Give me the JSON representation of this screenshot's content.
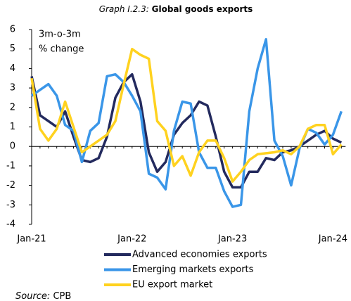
{
  "chart_data": {
    "type": "line",
    "title_prefix": "Graph I.2.3:",
    "title": "Global goods exports",
    "y_label": [
      "3m-o-3m",
      "% change"
    ],
    "source_prefix": "Source:",
    "source": "CPB",
    "categories": [
      "Jan-21",
      null,
      null,
      null,
      null,
      null,
      null,
      null,
      null,
      null,
      null,
      null,
      "Jan-22",
      null,
      null,
      null,
      null,
      null,
      null,
      null,
      null,
      null,
      null,
      null,
      "Jan-23",
      null,
      null,
      null,
      null,
      null,
      null,
      null,
      null,
      null,
      null,
      null,
      "Jan-24",
      null
    ],
    "series": [
      {
        "name": "Advanced economies exports",
        "color": "#232a5e",
        "values": [
          3.6,
          1.6,
          1.3,
          1.0,
          1.8,
          0.5,
          -0.7,
          -0.8,
          -0.6,
          0.5,
          2.5,
          3.3,
          3.7,
          2.3,
          -0.3,
          -1.3,
          -0.8,
          0.6,
          1.2,
          1.6,
          2.3,
          2.1,
          0.5,
          -1.3,
          -2.1,
          -2.1,
          -1.3,
          -1.3,
          -0.6,
          -0.7,
          -0.3,
          -0.2,
          0.0,
          0.3,
          0.6,
          0.8,
          0.4,
          0.2
        ]
      },
      {
        "name": "Emerging markets exports",
        "color": "#3a96e8",
        "values": [
          2.6,
          2.9,
          3.2,
          2.6,
          1.1,
          0.8,
          -0.8,
          0.8,
          1.2,
          3.6,
          3.7,
          3.3,
          2.6,
          1.8,
          -1.4,
          -1.6,
          -2.2,
          0.8,
          2.3,
          2.2,
          -0.3,
          -1.1,
          -1.1,
          -2.3,
          -3.1,
          -3.0,
          1.8,
          4.0,
          5.5,
          0.3,
          -0.5,
          -2.0,
          -0.1,
          0.9,
          0.7,
          0.1,
          0.6,
          1.8
        ]
      },
      {
        "name": "EU export market",
        "color": "#ffd21f",
        "values": [
          3.5,
          0.9,
          0.3,
          0.9,
          2.3,
          1.0,
          -0.3,
          0.0,
          0.3,
          0.6,
          1.3,
          3.2,
          5.0,
          4.7,
          4.5,
          1.3,
          0.8,
          -1.0,
          -0.5,
          -1.5,
          -0.3,
          0.3,
          0.3,
          -0.6,
          -1.8,
          -1.3,
          -0.7,
          -0.4,
          -0.35,
          -0.3,
          -0.2,
          -0.4,
          0.0,
          0.9,
          1.1,
          1.1,
          -0.4,
          0.1
        ]
      }
    ],
    "ylim": [
      -4,
      6
    ],
    "yticks": [
      -4,
      -3,
      -2,
      -1,
      0,
      1,
      2,
      3,
      4,
      5,
      6
    ],
    "grid": false
  }
}
